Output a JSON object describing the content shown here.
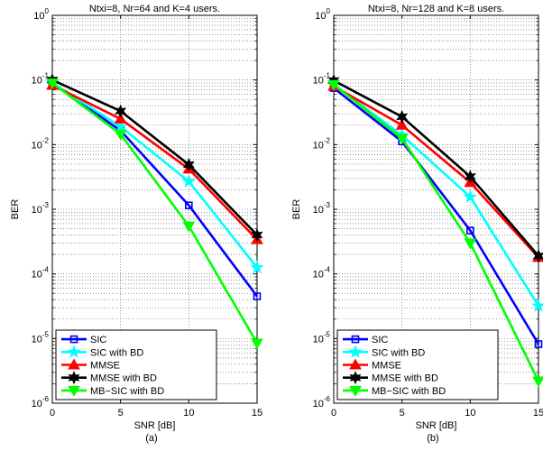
{
  "chart_data": [
    {
      "type": "line",
      "title": "Ntxi=8, Nr=64  and K=4 users.",
      "xlabel": "SNR [dB]",
      "ylabel": "BER",
      "caption": "(a)",
      "xscale": "linear",
      "yscale": "log",
      "xlim": [
        0,
        15
      ],
      "ylim": [
        1e-06,
        1
      ],
      "x": [
        0,
        5,
        10,
        15
      ],
      "xticks": [
        "0",
        "5",
        "10",
        "15"
      ],
      "yticks": [
        {
          "base": "10",
          "exp": "0"
        },
        {
          "base": "10",
          "exp": "-1"
        },
        {
          "base": "10",
          "exp": "-2"
        },
        {
          "base": "10",
          "exp": "-3"
        },
        {
          "base": "10",
          "exp": "-4"
        },
        {
          "base": "10",
          "exp": "-5"
        },
        {
          "base": "10",
          "exp": "-6"
        }
      ],
      "grid": true,
      "legend_position": "bottom-left",
      "series": [
        {
          "name": "SIC",
          "color": "#0000ff",
          "marker": "square",
          "values": [
            0.09,
            0.0165,
            0.00115,
            4.5e-05
          ]
        },
        {
          "name": "SIC with BD",
          "color": "#00ffff",
          "marker": "star",
          "values": [
            0.09,
            0.019,
            0.0027,
            0.000125
          ]
        },
        {
          "name": "MMSE",
          "color": "#ff0000",
          "marker": "triangle-up",
          "values": [
            0.083,
            0.025,
            0.0042,
            0.00034
          ]
        },
        {
          "name": "MMSE with BD",
          "color": "#000000",
          "marker": "hexagram",
          "values": [
            0.1,
            0.033,
            0.0049,
            0.0004
          ]
        },
        {
          "name": "MB−SIC with BD",
          "color": "#00ff00",
          "marker": "triangle-down",
          "values": [
            0.09,
            0.0145,
            0.00055,
            8.5e-06
          ]
        }
      ]
    },
    {
      "type": "line",
      "title": "Ntxi=8, Nr=128  and K=8 users.",
      "xlabel": "SNR [dB]",
      "ylabel": "BER",
      "caption": "(b)",
      "xscale": "linear",
      "yscale": "log",
      "xlim": [
        0,
        15
      ],
      "ylim": [
        1e-06,
        1
      ],
      "x": [
        0,
        5,
        10,
        15
      ],
      "xticks": [
        "0",
        "5",
        "10",
        "15"
      ],
      "yticks": [
        {
          "base": "10",
          "exp": "0"
        },
        {
          "base": "10",
          "exp": "-1"
        },
        {
          "base": "10",
          "exp": "-2"
        },
        {
          "base": "10",
          "exp": "-3"
        },
        {
          "base": "10",
          "exp": "-4"
        },
        {
          "base": "10",
          "exp": "-5"
        },
        {
          "base": "10",
          "exp": "-6"
        }
      ],
      "grid": true,
      "legend_position": "bottom-left",
      "series": [
        {
          "name": "SIC",
          "color": "#0000ff",
          "marker": "square",
          "values": [
            0.075,
            0.0112,
            0.00047,
            8.2e-06
          ]
        },
        {
          "name": "SIC with BD",
          "color": "#00ffff",
          "marker": "star",
          "values": [
            0.085,
            0.014,
            0.00155,
            3.2e-05
          ]
        },
        {
          "name": "MMSE",
          "color": "#ff0000",
          "marker": "triangle-up",
          "values": [
            0.08,
            0.02,
            0.0026,
            0.00018
          ]
        },
        {
          "name": "MMSE with BD",
          "color": "#000000",
          "marker": "hexagram",
          "values": [
            0.098,
            0.027,
            0.0032,
            0.00019
          ]
        },
        {
          "name": "MB−SIC with BD",
          "color": "#00ff00",
          "marker": "triangle-down",
          "values": [
            0.085,
            0.0125,
            0.0003,
            2.2e-06
          ]
        }
      ]
    }
  ]
}
